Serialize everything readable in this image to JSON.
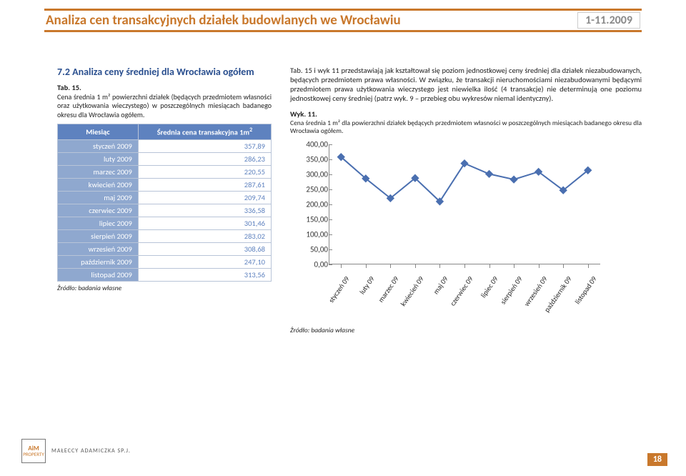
{
  "header": {
    "title": "Analiza cen transakcyjnych działek budowlanych we Wrocławiu",
    "date": "1-11.2009",
    "accent_color": "#c9782c",
    "date_color": "#8a8a8a"
  },
  "left": {
    "section_no": "7.2",
    "section_title": "Analiza ceny średniej dla Wrocławia ogółem",
    "tab_label": "Tab. 15.",
    "tab_desc": "Cena średnia 1 m² powierzchni działek (będących przedmiotem własności oraz użytkowania wieczystego) w poszczególnych miesiącach badanego okresu dla Wrocławia ogółem.",
    "col_month": "Miesiąc",
    "col_value": "Średnia cena transakcyjna 1m",
    "col_value_sup": "2",
    "rows": [
      {
        "month": "styczeń 2009",
        "value": "357,89"
      },
      {
        "month": "luty 2009",
        "value": "286,23"
      },
      {
        "month": "marzec 2009",
        "value": "220,55"
      },
      {
        "month": "kwiecień 2009",
        "value": "287,61"
      },
      {
        "month": "maj 2009",
        "value": "209,74"
      },
      {
        "month": "czerwiec 2009",
        "value": "336,58"
      },
      {
        "month": "lipiec 2009",
        "value": "301,46"
      },
      {
        "month": "sierpień 2009",
        "value": "283,02"
      },
      {
        "month": "wrzesień 2009",
        "value": "308,68"
      },
      {
        "month": "październik 2009",
        "value": "247,10"
      },
      {
        "month": "listopad 2009",
        "value": "313,56"
      }
    ],
    "source": "Źródło: badania własne"
  },
  "right": {
    "para": "Tab. 15 i wyk 11 przedstawiają jak kształtował się poziom jednostkowej ceny  średniej dla działek niezabudowanych, będących przedmiotem prawa własności. W związku, że transakcji nieruchomościami niezabudowanymi będącymi przedmiotem prawa użytkowania wieczystego jest niewielka ilość (4 transakcje) nie determinują one poziomu jednostkowej ceny średniej (patrz wyk. 9 – przebieg obu wykresów niemal identyczny).",
    "wyk_label": "Wyk. 11.",
    "wyk_desc": "Cena średnia 1 m² dla powierzchni działek będących przedmiotem własności w poszczególnych miesiącach badanego okresu dla Wrocławia ogółem.",
    "source": "Źródło: badania własne"
  },
  "chart": {
    "type": "line",
    "y_min": 0,
    "y_max": 400,
    "y_step": 50,
    "y_labels": [
      "0,00",
      "50,00",
      "100,00",
      "150,00",
      "200,00",
      "250,00",
      "300,00",
      "350,00",
      "400,00"
    ],
    "x_labels": [
      "styczeń 09",
      "luty 09",
      "marzec 09",
      "kwiecień 09",
      "maj 09",
      "czerwiec 09",
      "lipiec 09",
      "sierpień 09",
      "wrzesień 09",
      "październik 09",
      "listopad 09"
    ],
    "values": [
      357.89,
      286.23,
      220.55,
      287.61,
      209.74,
      336.58,
      301.46,
      283.02,
      308.68,
      247.1,
      313.56
    ],
    "line_color": "#4a6fb0",
    "marker_color": "#4a6fb0",
    "marker_size": 4,
    "line_width": 2,
    "axis_color": "#888888",
    "tick_fontsize": 11,
    "xlabel_fontsize": 10,
    "background_color": "#ffffff"
  },
  "footer": {
    "logo_top": "AiM",
    "logo_bottom": "PROPERTY",
    "logo_sub": "MAŁECCY ADAMICZKA SP.J.",
    "page": "18",
    "page_bg": "#c9782c"
  }
}
